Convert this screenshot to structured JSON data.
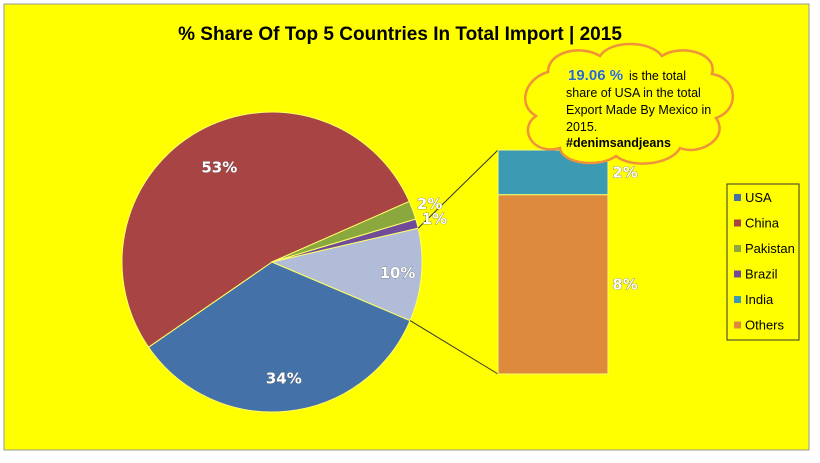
{
  "colors": {
    "background": "#ffff00",
    "usa": "#4472a8",
    "china": "#a84443",
    "pakistan": "#8aa83d",
    "brazil": "#6f4b9a",
    "india": "#3d9ab3",
    "others": "#dd8a3d",
    "cloud_stroke": "#f0923a"
  },
  "chart_data": {
    "type": "pie",
    "title": "% Share Of Top 5 Countries In Total Import | 2015",
    "slices": [
      {
        "name": "USA",
        "value": 34,
        "label": "34%",
        "color": "#4472a8"
      },
      {
        "name": "China",
        "value": 53,
        "label": "53%",
        "color": "#a84443"
      },
      {
        "name": "Pakistan",
        "value": 2,
        "label": "2%",
        "color": "#8aa83d"
      },
      {
        "name": "Brazil",
        "value": 1,
        "label": "1%",
        "color": "#6f4b9a"
      },
      {
        "name": "Others (India + Others)",
        "value": 10,
        "label": "10%",
        "color": "#b0bcd8"
      }
    ],
    "breakout_bar": [
      {
        "name": "India",
        "value": 2,
        "label": "2%",
        "color": "#3d9ab3"
      },
      {
        "name": "Others",
        "value": 8,
        "label": "8%",
        "color": "#dd8a3d"
      }
    ],
    "legend": [
      "USA",
      "China",
      "Pakistan",
      "Brazil",
      "India",
      "Others"
    ],
    "legend_placement": "right"
  },
  "callout": {
    "highlight": "19.06 %",
    "line1": "is the total",
    "line2": "share of USA in the total",
    "line3": "Export Made By Mexico in",
    "line4": "2015.",
    "hashtag": "#denimsandjeans"
  }
}
